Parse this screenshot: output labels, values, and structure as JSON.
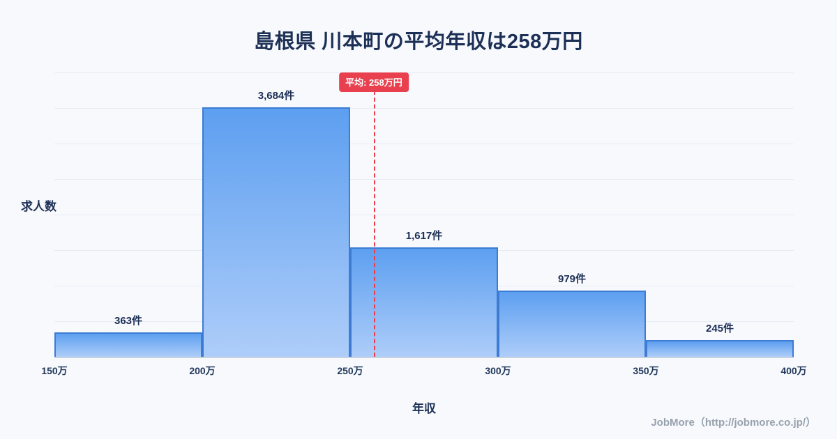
{
  "title": "島根県 川本町の平均年収は258万円",
  "chart_data": {
    "type": "bar",
    "subtype": "histogram",
    "title": "島根県 川本町の平均年収は258万円",
    "xlabel": "年収",
    "ylabel": "求人数",
    "categories": [
      "150万-200万",
      "200万-250万",
      "250万-300万",
      "300万-350万",
      "350万-400万"
    ],
    "values": [
      363,
      3684,
      1617,
      979,
      245
    ],
    "value_labels": [
      "363件",
      "3,684件",
      "1,617件",
      "979件",
      "245件"
    ],
    "x_ticks": [
      "150万",
      "200万",
      "250万",
      "300万",
      "350万",
      "400万"
    ],
    "x_range": [
      150,
      400
    ],
    "ylim": [
      0,
      4200
    ],
    "grid": "horizontal",
    "average_line": {
      "x_value": 258,
      "label": "平均: 258万円",
      "color": "#e8404f",
      "style": "dashed"
    },
    "colors": {
      "bar_fill_top": "#5d9ff0",
      "bar_fill_bottom": "#aecdf9",
      "bar_border": "#3c7cd4",
      "text": "#1c2f55",
      "background": "#f7f9fd"
    }
  },
  "footer": {
    "credit": "JobMore（http://jobmore.co.jp/）"
  }
}
